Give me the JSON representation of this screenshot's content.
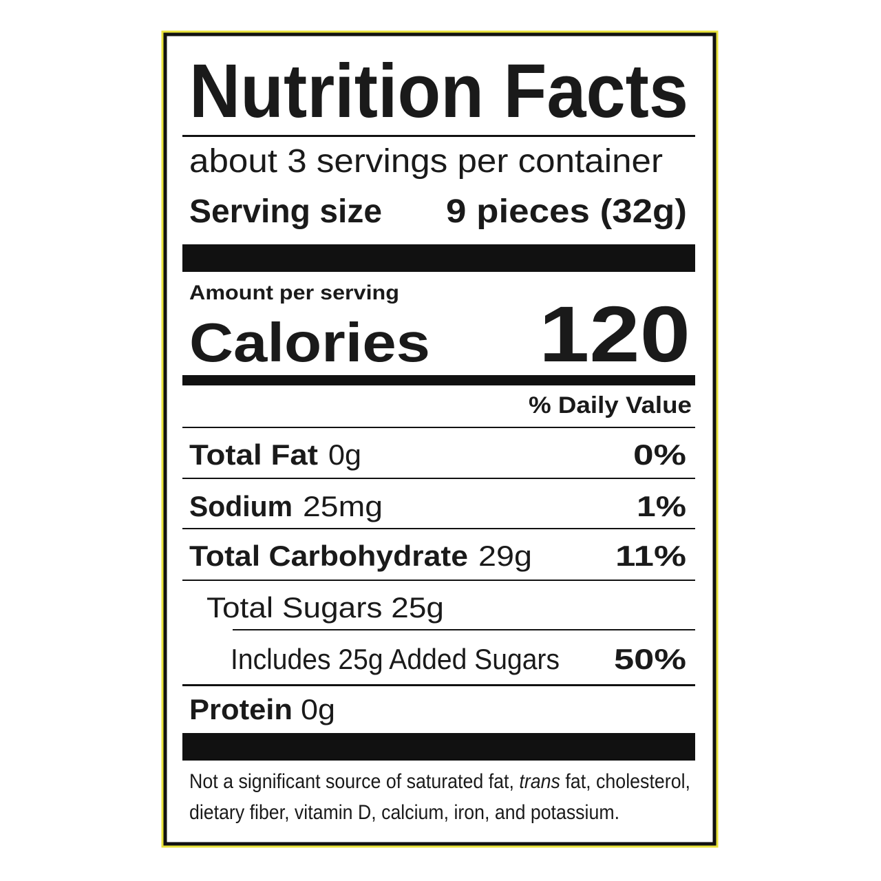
{
  "label": {
    "title": "Nutrition Facts",
    "servings": "about 3 servings per container",
    "serving_size": {
      "label": "Serving size",
      "value": "9 pieces (32g)"
    },
    "amount_per_serving": "Amount per serving",
    "calories": {
      "label": "Calories",
      "value": "120"
    },
    "daily_value_header": "% Daily Value",
    "nutrients": [
      {
        "name": "Total Fat",
        "amount": "0g",
        "dv": "0%"
      },
      {
        "name": "Sodium",
        "amount": "25mg",
        "dv": "1%"
      },
      {
        "name": "Total Carbohydrate",
        "amount": "29g",
        "dv": "11%"
      },
      {
        "label": "Total Sugars 25g"
      },
      {
        "label": "Includes 25g Added Sugars",
        "dv": "50%"
      },
      {
        "name": "Protein",
        "amount": "0g"
      }
    ],
    "footnote": [
      "Not a significant source of saturated fat, ",
      "trans",
      " fat, cholesterol,",
      "dietary fiber, vitamin D, calcium, iron, and potassium."
    ]
  }
}
